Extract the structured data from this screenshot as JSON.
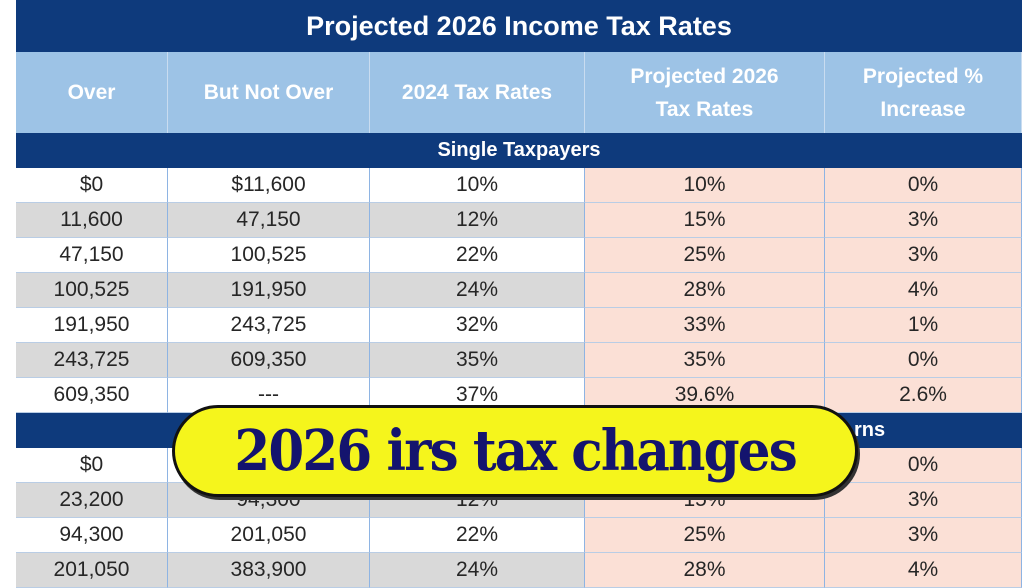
{
  "title": "Projected 2026 Income Tax Rates",
  "headers": [
    "Over",
    "But Not Over",
    "2024 Tax Rates",
    "Projected 2026 Tax Rates",
    "Projected % Increase"
  ],
  "section1": {
    "label": "Single Taxpayers",
    "rows": [
      [
        "$0",
        "$11,600",
        "10%",
        "10%",
        "0%"
      ],
      [
        "11,600",
        "47,150",
        "12%",
        "15%",
        "3%"
      ],
      [
        "47,150",
        "100,525",
        "22%",
        "25%",
        "3%"
      ],
      [
        "100,525",
        "191,950",
        "24%",
        "28%",
        "4%"
      ],
      [
        "191,950",
        "243,725",
        "32%",
        "33%",
        "1%"
      ],
      [
        "243,725",
        "609,350",
        "35%",
        "35%",
        "0%"
      ],
      [
        "609,350",
        "---",
        "37%",
        "39.6%",
        "2.6%"
      ]
    ]
  },
  "section2": {
    "label_visible": "rns",
    "rows": [
      [
        "$0",
        "",
        "",
        "",
        "0%"
      ],
      [
        "23,200",
        "94,300",
        "12%",
        "15%",
        "3%"
      ],
      [
        "94,300",
        "201,050",
        "22%",
        "25%",
        "3%"
      ],
      [
        "201,050",
        "383,900",
        "24%",
        "28%",
        "4%"
      ]
    ]
  },
  "banner": {
    "text": "2026 irs tax changes"
  },
  "colors": {
    "navy": "#0e3a7c",
    "header_blue": "#9dc3e6",
    "gray_row": "#d9d9d9",
    "pink": "#fbe0d6",
    "banner_yellow": "#f5f51c",
    "banner_text": "#14146e"
  }
}
